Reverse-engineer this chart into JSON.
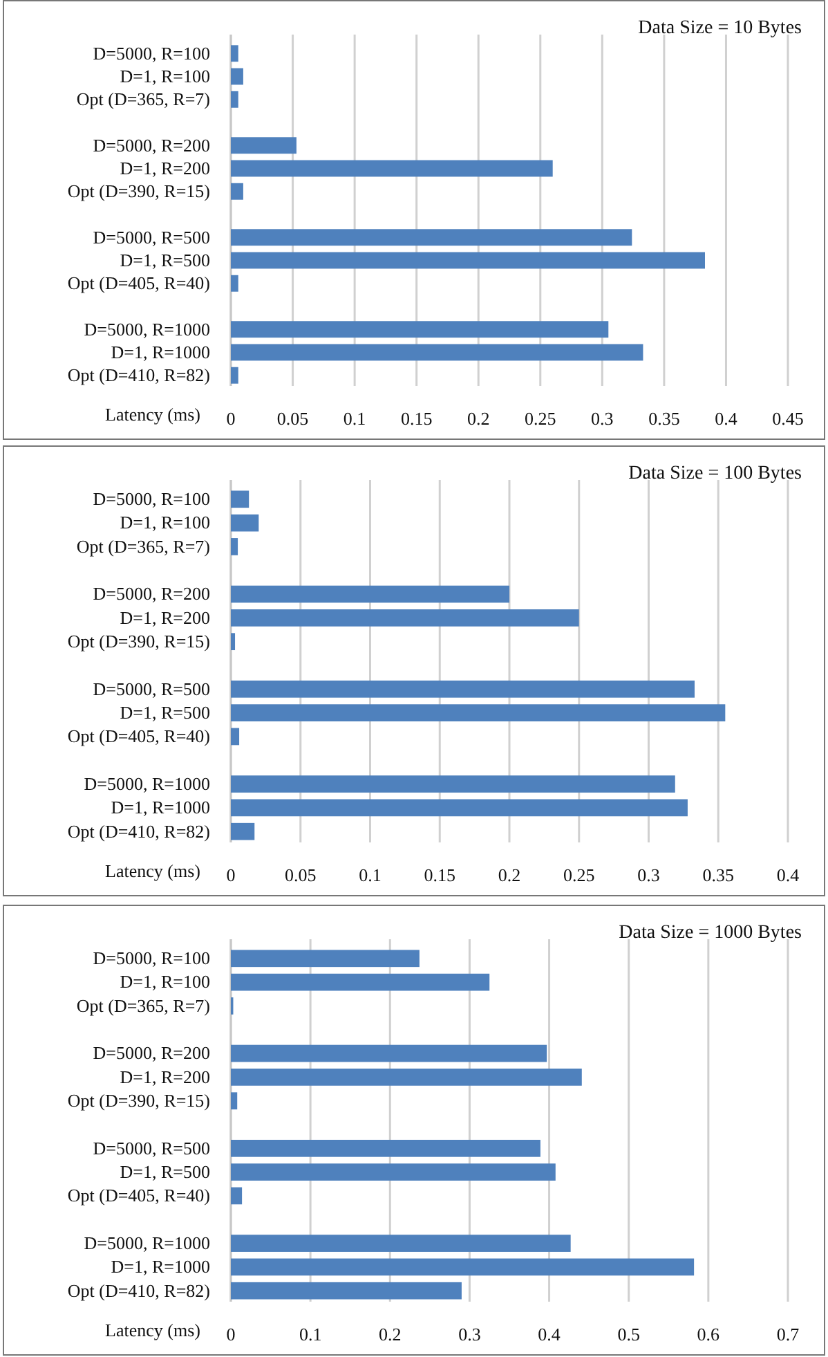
{
  "chart_data": [
    {
      "type": "bar",
      "orientation": "horizontal",
      "title": "Data Size = 10 Bytes",
      "xlabel": "Latency (ms)",
      "grid": "x",
      "color": "#4f81bd",
      "categories": [
        "D=5000, R=100",
        "D=1, R=100",
        "Opt (D=365, R=7)",
        null,
        "D=5000, R=200",
        "D=1, R=200",
        "Opt (D=390, R=15)",
        null,
        "D=5000, R=500",
        "D=1, R=500",
        "Opt (D=405, R=40)",
        null,
        "D=5000, R=1000",
        "D=1, R=1000",
        "Opt (D=410, R=82)"
      ],
      "values": [
        0.006,
        0.01,
        0.006,
        null,
        0.053,
        0.26,
        0.01,
        null,
        0.324,
        0.383,
        0.006,
        null,
        0.305,
        0.333,
        0.006
      ],
      "xlim": [
        0,
        0.45
      ],
      "xticks": [
        0,
        0.05,
        0.1,
        0.15,
        0.2,
        0.25,
        0.3,
        0.35,
        0.4,
        0.45
      ]
    },
    {
      "type": "bar",
      "orientation": "horizontal",
      "title": "Data Size = 100 Bytes",
      "xlabel": "Latency (ms)",
      "grid": "x",
      "color": "#4f81bd",
      "categories": [
        "D=5000, R=100",
        "D=1, R=100",
        "Opt (D=365, R=7)",
        null,
        "D=5000, R=200",
        "D=1, R=200",
        "Opt (D=390, R=15)",
        null,
        "D=5000, R=500",
        "D=1, R=500",
        "Opt (D=405, R=40)",
        null,
        "D=5000, R=1000",
        "D=1, R=1000",
        "Opt (D=410, R=82)"
      ],
      "values": [
        0.013,
        0.02,
        0.005,
        null,
        0.2,
        0.25,
        0.003,
        null,
        0.333,
        0.355,
        0.006,
        null,
        0.319,
        0.328,
        0.017
      ],
      "xlim": [
        0,
        0.4
      ],
      "xticks": [
        0,
        0.05,
        0.1,
        0.15,
        0.2,
        0.25,
        0.3,
        0.35,
        0.4
      ]
    },
    {
      "type": "bar",
      "orientation": "horizontal",
      "title": "Data Size = 1000 Bytes",
      "xlabel": "Latency (ms)",
      "grid": "x",
      "color": "#4f81bd",
      "categories": [
        "D=5000, R=100",
        "D=1, R=100",
        "Opt (D=365, R=7)",
        null,
        "D=5000, R=200",
        "D=1, R=200",
        "Opt (D=390, R=15)",
        null,
        "D=5000, R=500",
        "D=1, R=500",
        "Opt (D=405, R=40)",
        null,
        "D=5000, R=1000",
        "D=1, R=1000",
        "Opt (D=410, R=82)"
      ],
      "values": [
        0.237,
        0.325,
        0.003,
        null,
        0.397,
        0.441,
        0.008,
        null,
        0.389,
        0.408,
        0.014,
        null,
        0.427,
        0.582,
        0.29
      ],
      "xlim": [
        0,
        0.7
      ],
      "xticks": [
        0,
        0.1,
        0.2,
        0.3,
        0.4,
        0.5,
        0.6,
        0.7
      ]
    }
  ]
}
